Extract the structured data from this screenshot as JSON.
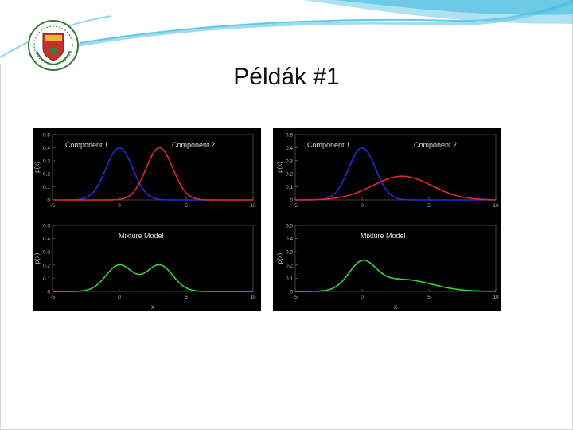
{
  "slide": {
    "title": "Példák #1"
  },
  "colors": {
    "background": "#ffffff",
    "figure_bg": "#000000",
    "component1": "#2a2ad6",
    "component2": "#e02a2a",
    "mixture": "#3ad23a",
    "swoosh": "#5ec8e6"
  },
  "logo": {
    "icon": "university-crest-icon"
  },
  "chart_data": [
    {
      "type": "line",
      "panel": "left-top",
      "series": [
        {
          "name": "Component 1",
          "color": "#2a2ad6",
          "mu": 0,
          "sigma": 1,
          "weight": 1
        },
        {
          "name": "Component 2",
          "color": "#e02a2a",
          "mu": 3,
          "sigma": 1,
          "weight": 1
        }
      ],
      "annotations": [
        "Component 1",
        "Component 2"
      ],
      "xlim": [
        -5,
        10
      ],
      "ylim": [
        0,
        0.5
      ],
      "xticks": [
        "-5",
        "0",
        "5",
        "10"
      ],
      "yticks": [
        "0",
        "0.1",
        "0.2",
        "0.3",
        "0.4",
        "0.5"
      ],
      "xlabel": "",
      "ylabel": "p(x)"
    },
    {
      "type": "line",
      "panel": "left-bottom",
      "series": [
        {
          "name": "Mixture Model",
          "color": "#3ad23a",
          "mixture": [
            {
              "mu": 0,
              "sigma": 1,
              "weight": 0.5
            },
            {
              "mu": 3,
              "sigma": 1,
              "weight": 0.5
            }
          ]
        }
      ],
      "annotations": [
        "Mixture Model"
      ],
      "xlim": [
        -5,
        10
      ],
      "ylim": [
        0,
        0.5
      ],
      "xticks": [
        "-5",
        "0",
        "5",
        "10"
      ],
      "yticks": [
        "0",
        "0.1",
        "0.2",
        "0.3",
        "0.4",
        "0.5"
      ],
      "xlabel": "x",
      "ylabel": "p(x)"
    },
    {
      "type": "line",
      "panel": "right-top",
      "series": [
        {
          "name": "Component 1",
          "color": "#2a2ad6",
          "mu": 0,
          "sigma": 1,
          "weight": 1
        },
        {
          "name": "Component 2",
          "color": "#e02a2a",
          "mu": 3,
          "sigma": 2.2,
          "weight": 1
        }
      ],
      "annotations": [
        "Component 1",
        "Component 2"
      ],
      "xlim": [
        -5,
        10
      ],
      "ylim": [
        0,
        0.5
      ],
      "xticks": [
        "-5",
        "0",
        "5",
        "10"
      ],
      "yticks": [
        "0",
        "0.1",
        "0.2",
        "0.3",
        "0.4",
        "0.5"
      ],
      "xlabel": "",
      "ylabel": "p(x)"
    },
    {
      "type": "line",
      "panel": "right-bottom",
      "series": [
        {
          "name": "Mixture Model",
          "color": "#3ad23a",
          "mixture": [
            {
              "mu": 0,
              "sigma": 1,
              "weight": 0.5
            },
            {
              "mu": 3,
              "sigma": 2.2,
              "weight": 0.5
            }
          ]
        }
      ],
      "annotations": [
        "Mixture Model"
      ],
      "xlim": [
        -5,
        10
      ],
      "ylim": [
        0,
        0.5
      ],
      "xticks": [
        "-5",
        "0",
        "5",
        "10"
      ],
      "yticks": [
        "0",
        "0.1",
        "0.2",
        "0.3",
        "0.4",
        "0.5"
      ],
      "xlabel": "x",
      "ylabel": "p(x)"
    }
  ]
}
